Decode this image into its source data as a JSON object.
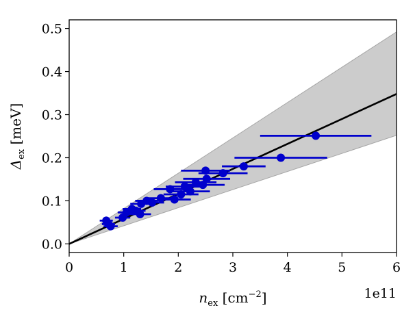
{
  "chart_data": {
    "type": "scatter",
    "xlabel": {
      "main": "n",
      "sub": "ex",
      "unit_open": " [cm",
      "unit_sup": "−2",
      "unit_close": "]"
    },
    "ylabel": {
      "main": "Δ",
      "sub": "ex",
      "unit": " [meV]"
    },
    "x_offset_label": "1e11",
    "xlim": [
      0,
      6
    ],
    "ylim": [
      -0.02,
      0.52
    ],
    "x_ticks": [
      0,
      1,
      2,
      3,
      4,
      5,
      6
    ],
    "x_tick_labels": [
      "0",
      "1",
      "2",
      "3",
      "4",
      "5",
      "6"
    ],
    "y_ticks": [
      0.0,
      0.1,
      0.2,
      0.3,
      0.4,
      0.5
    ],
    "y_tick_labels": [
      "0.0",
      "0.1",
      "0.2",
      "0.3",
      "0.4",
      "0.5"
    ],
    "grid": false,
    "fit_line": {
      "slope": 0.058,
      "intercept": 0.0,
      "color": "#000000"
    },
    "band": {
      "lower_slope": 0.042,
      "upper_slope": 0.082,
      "color": "#cccccc",
      "edge_color": "#a6a6a6"
    },
    "points_color": "#0000cc",
    "points": [
      {
        "x": 0.68,
        "y": 0.054,
        "xerr": 0.12
      },
      {
        "x": 0.72,
        "y": 0.046,
        "xerr": 0.12
      },
      {
        "x": 0.76,
        "y": 0.041,
        "xerr": 0.13
      },
      {
        "x": 0.98,
        "y": 0.061,
        "xerr": 0.14
      },
      {
        "x": 1.05,
        "y": 0.073,
        "xerr": 0.16
      },
      {
        "x": 1.15,
        "y": 0.081,
        "xerr": 0.17
      },
      {
        "x": 1.22,
        "y": 0.077,
        "xerr": 0.18
      },
      {
        "x": 1.3,
        "y": 0.069,
        "xerr": 0.2
      },
      {
        "x": 1.32,
        "y": 0.093,
        "xerr": 0.2
      },
      {
        "x": 1.42,
        "y": 0.1,
        "xerr": 0.21
      },
      {
        "x": 1.52,
        "y": 0.096,
        "xerr": 0.22
      },
      {
        "x": 1.68,
        "y": 0.106,
        "xerr": 0.26
      },
      {
        "x": 1.85,
        "y": 0.127,
        "xerr": 0.3
      },
      {
        "x": 1.93,
        "y": 0.103,
        "xerr": 0.3
      },
      {
        "x": 2.05,
        "y": 0.115,
        "xerr": 0.32
      },
      {
        "x": 2.12,
        "y": 0.133,
        "xerr": 0.35
      },
      {
        "x": 2.22,
        "y": 0.122,
        "xerr": 0.36
      },
      {
        "x": 2.32,
        "y": 0.143,
        "xerr": 0.38
      },
      {
        "x": 2.45,
        "y": 0.137,
        "xerr": 0.4
      },
      {
        "x": 2.52,
        "y": 0.151,
        "xerr": 0.43
      },
      {
        "x": 2.5,
        "y": 0.17,
        "xerr": 0.45
      },
      {
        "x": 2.82,
        "y": 0.164,
        "xerr": 0.45
      },
      {
        "x": 3.2,
        "y": 0.18,
        "xerr": 0.4
      },
      {
        "x": 3.88,
        "y": 0.2,
        "xerr": 0.85
      },
      {
        "x": 4.52,
        "y": 0.251,
        "xerr": 1.02
      }
    ]
  }
}
